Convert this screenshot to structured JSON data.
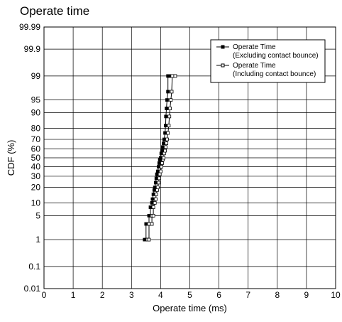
{
  "chart_data": {
    "type": "line",
    "title": "Operate time",
    "xlabel": "Operate time (ms)",
    "ylabel": "CDF (%)",
    "xlim": [
      0,
      10
    ],
    "xticks": [
      "0",
      "1",
      "2",
      "3",
      "4",
      "5",
      "6",
      "7",
      "8",
      "9",
      "10"
    ],
    "y_scale": "normal-probability",
    "yticks": [
      "0.01",
      "0.1",
      "1",
      "5",
      "10",
      "20",
      "30",
      "40",
      "50",
      "60",
      "70",
      "80",
      "90",
      "95",
      "99",
      "99.9",
      "99.99"
    ],
    "grid": true,
    "legend_position": "top-right",
    "series": [
      {
        "name": "Operate Time",
        "name_line2": "(Excluding contact bounce)",
        "marker": "filled-square",
        "points": [
          [
            3.45,
            1
          ],
          [
            3.5,
            1
          ],
          [
            3.5,
            3
          ],
          [
            3.6,
            3
          ],
          [
            3.6,
            5
          ],
          [
            3.65,
            5
          ],
          [
            3.65,
            8
          ],
          [
            3.7,
            8
          ],
          [
            3.7,
            10
          ],
          [
            3.72,
            12
          ],
          [
            3.75,
            15
          ],
          [
            3.78,
            18
          ],
          [
            3.8,
            20
          ],
          [
            3.83,
            24
          ],
          [
            3.85,
            28
          ],
          [
            3.87,
            32
          ],
          [
            3.9,
            35
          ],
          [
            3.93,
            40
          ],
          [
            3.95,
            44
          ],
          [
            3.97,
            48
          ],
          [
            4.0,
            50
          ],
          [
            4.02,
            55
          ],
          [
            4.05,
            58
          ],
          [
            4.07,
            62
          ],
          [
            4.1,
            66
          ],
          [
            4.12,
            70
          ],
          [
            4.15,
            76
          ],
          [
            4.17,
            82
          ],
          [
            4.18,
            88
          ],
          [
            4.2,
            92
          ],
          [
            4.22,
            95
          ],
          [
            4.25,
            97
          ],
          [
            4.25,
            99
          ],
          [
            4.3,
            99
          ]
        ]
      },
      {
        "name": "Operate Time",
        "name_line2": "(Including contact bounce)",
        "marker": "open-square",
        "points": [
          [
            3.55,
            1
          ],
          [
            3.6,
            1
          ],
          [
            3.6,
            3
          ],
          [
            3.7,
            3
          ],
          [
            3.7,
            5
          ],
          [
            3.75,
            5
          ],
          [
            3.75,
            8
          ],
          [
            3.8,
            10
          ],
          [
            3.83,
            12
          ],
          [
            3.85,
            15
          ],
          [
            3.88,
            18
          ],
          [
            3.9,
            20
          ],
          [
            3.93,
            24
          ],
          [
            3.95,
            28
          ],
          [
            3.97,
            32
          ],
          [
            4.0,
            35
          ],
          [
            4.03,
            40
          ],
          [
            4.05,
            44
          ],
          [
            4.08,
            48
          ],
          [
            4.1,
            50
          ],
          [
            4.12,
            55
          ],
          [
            4.15,
            58
          ],
          [
            4.17,
            62
          ],
          [
            4.2,
            66
          ],
          [
            4.22,
            70
          ],
          [
            4.25,
            76
          ],
          [
            4.28,
            82
          ],
          [
            4.3,
            88
          ],
          [
            4.32,
            92
          ],
          [
            4.35,
            95
          ],
          [
            4.38,
            97
          ],
          [
            4.4,
            99
          ],
          [
            4.5,
            99
          ]
        ]
      }
    ]
  }
}
